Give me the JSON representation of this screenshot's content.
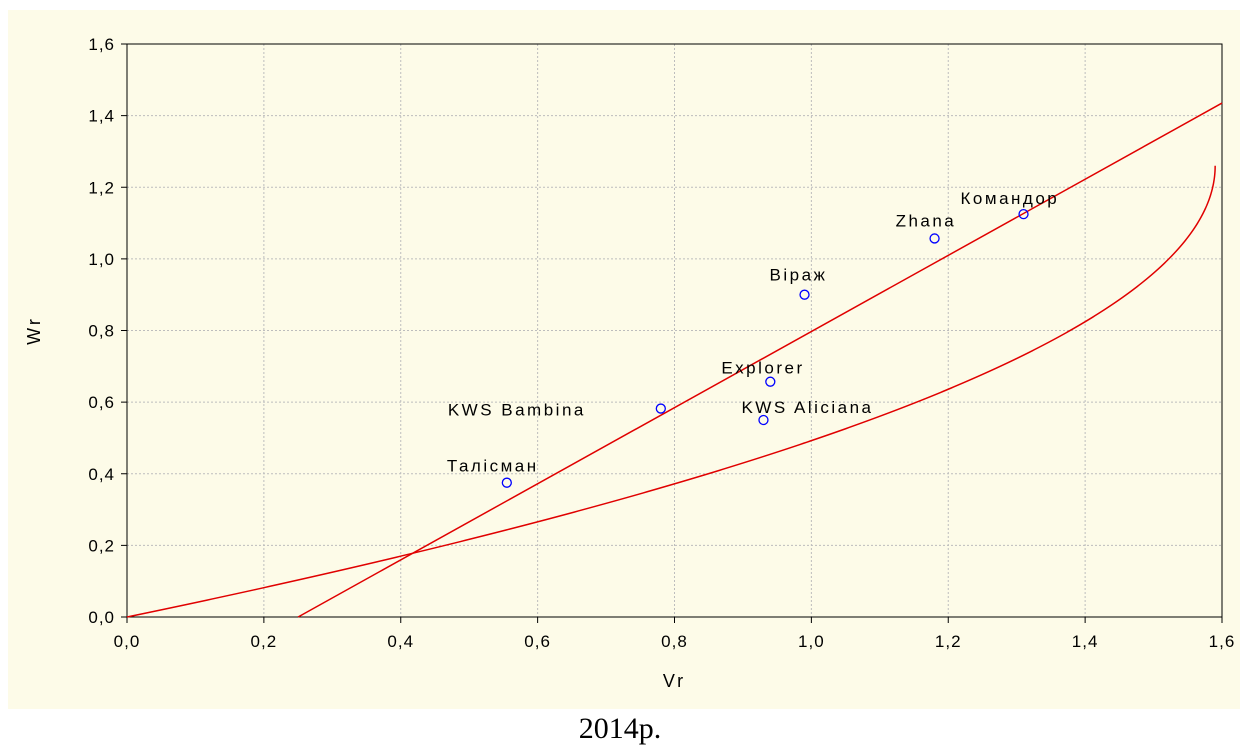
{
  "caption": "2014р.",
  "chart_data": {
    "type": "scatter",
    "xlabel": "Vr",
    "ylabel": "Wr",
    "xlim": [
      0.0,
      1.6
    ],
    "ylim": [
      0.0,
      1.6
    ],
    "x_ticks": [
      "0,0",
      "0,2",
      "0,4",
      "0,6",
      "0,8",
      "1,0",
      "1,2",
      "1,4",
      "1,6"
    ],
    "y_ticks": [
      "0,0",
      "0,2",
      "0,4",
      "0,6",
      "0,8",
      "1,0",
      "1,2",
      "1,4",
      "1,6"
    ],
    "grid": true,
    "points": [
      {
        "label": "Талісман",
        "x": 0.555,
        "y": 0.375
      },
      {
        "label": "KWS Bambina",
        "x": 0.78,
        "y": 0.582
      },
      {
        "label": "KWS Aliciana",
        "x": 0.93,
        "y": 0.55
      },
      {
        "label": "Explorer",
        "x": 0.94,
        "y": 0.657
      },
      {
        "label": "Віраж",
        "x": 0.99,
        "y": 0.9
      },
      {
        "label": "Zhana",
        "x": 1.18,
        "y": 1.057
      },
      {
        "label": "Командор",
        "x": 1.31,
        "y": 1.125
      }
    ],
    "regression_line": {
      "x": [
        0.25,
        1.6
      ],
      "y": [
        0.0,
        1.435
      ]
    },
    "parabola_limit": {
      "y_max": 1.26,
      "x_max": 1.59
    },
    "colors": {
      "points": "#0000ff",
      "lines": "#e00000",
      "grid": "#bdbdbd",
      "background": "#fdfbe8"
    }
  }
}
